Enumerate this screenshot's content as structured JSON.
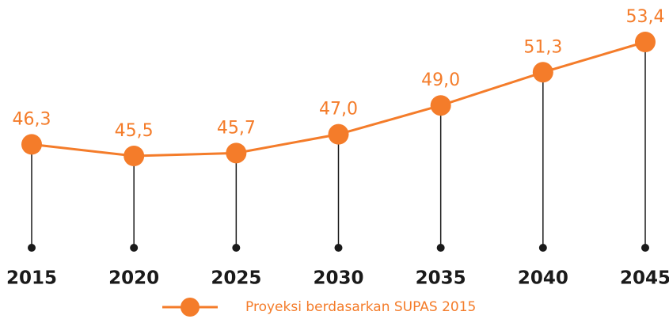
{
  "chart_data": {
    "type": "line",
    "categories": [
      "2015",
      "2020",
      "2025",
      "2030",
      "2035",
      "2040",
      "2045"
    ],
    "series": [
      {
        "name": "Proyeksi berdasarkan SUPAS 2015",
        "color": "#f47c2a",
        "values": [
          46.3,
          45.5,
          45.7,
          47.0,
          49.0,
          51.3,
          53.4
        ],
        "value_labels": [
          "46,3",
          "45,5",
          "45,7",
          "47,0",
          "49,0",
          "51,3",
          "53,4"
        ]
      }
    ]
  }
}
